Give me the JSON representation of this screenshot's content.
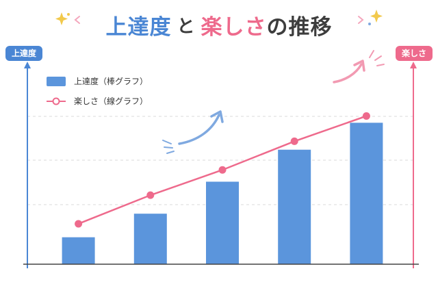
{
  "title": {
    "part1": "上達度",
    "part2": "と",
    "part3": "楽しさ",
    "part4": "の推移"
  },
  "left_axis_label": "上達度",
  "right_axis_label": "楽しさ",
  "legend": {
    "bar_label": "上達度（棒グラフ）",
    "line_label": "楽しさ（線グラフ）"
  },
  "colors": {
    "bar": "#5b95dc",
    "line": "#ee6a8c",
    "left_axis": "#4a86d4",
    "right_axis": "#ee6a8c",
    "grid": "#d9d9d9"
  },
  "chart_data": {
    "type": "bar",
    "categories": [
      "",
      "",
      "",
      "",
      ""
    ],
    "series": [
      {
        "name": "上達度（棒グラフ）",
        "type": "bar",
        "axis": "left",
        "values": [
          1.6,
          3.0,
          4.9,
          6.8,
          8.4
        ]
      },
      {
        "name": "楽しさ（線グラフ）",
        "type": "line",
        "axis": "right",
        "values": [
          2.4,
          4.1,
          5.6,
          7.3,
          8.8
        ]
      }
    ],
    "ylim": [
      0,
      10
    ],
    "grid": true,
    "legend_position": "top-left",
    "xlabel": "",
    "ylabel": "上達度",
    "ylabel_right": "楽しさ"
  }
}
